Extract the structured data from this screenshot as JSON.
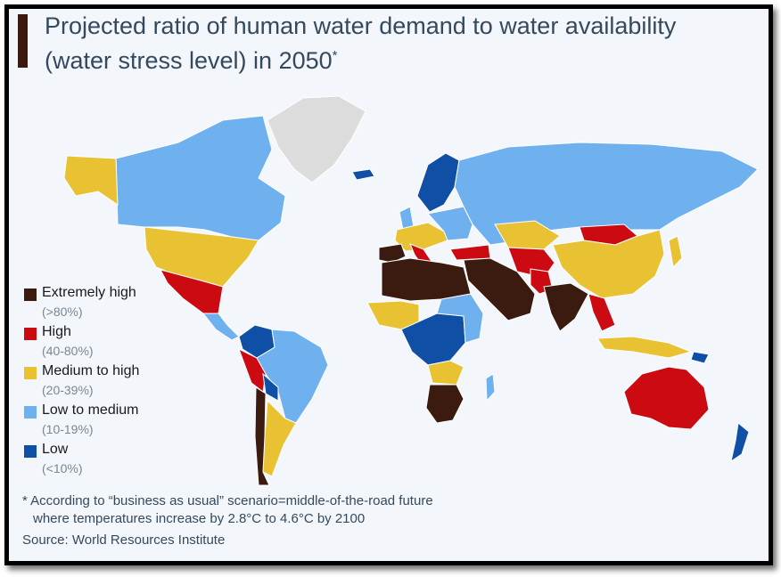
{
  "title": "Projected ratio of human water demand to water availability (water stress level) in 2050",
  "title_marker": "*",
  "legend": [
    {
      "label": "Extremely high",
      "range": "(>80%)",
      "color": "#3b1a0f"
    },
    {
      "label": "High",
      "range": "(40-80%)",
      "color": "#cc0a12"
    },
    {
      "label": "Medium to high",
      "range": "(20-39%)",
      "color": "#e8c233"
    },
    {
      "label": "Low to medium",
      "range": "(10-19%)",
      "color": "#6fb0ee"
    },
    {
      "label": "Low",
      "range": "(<10%)",
      "color": "#0f4fa6"
    }
  ],
  "no_data_color": "#dcdcdc",
  "accent_color": "#3b1a0f",
  "footnote_line1": "* According to “business as usual” scenario=middle-of-the-road future",
  "footnote_line2": "where temperatures increase by 2.8°C to 4.6°C by 2100",
  "source": "Source: World Resources Institute"
}
